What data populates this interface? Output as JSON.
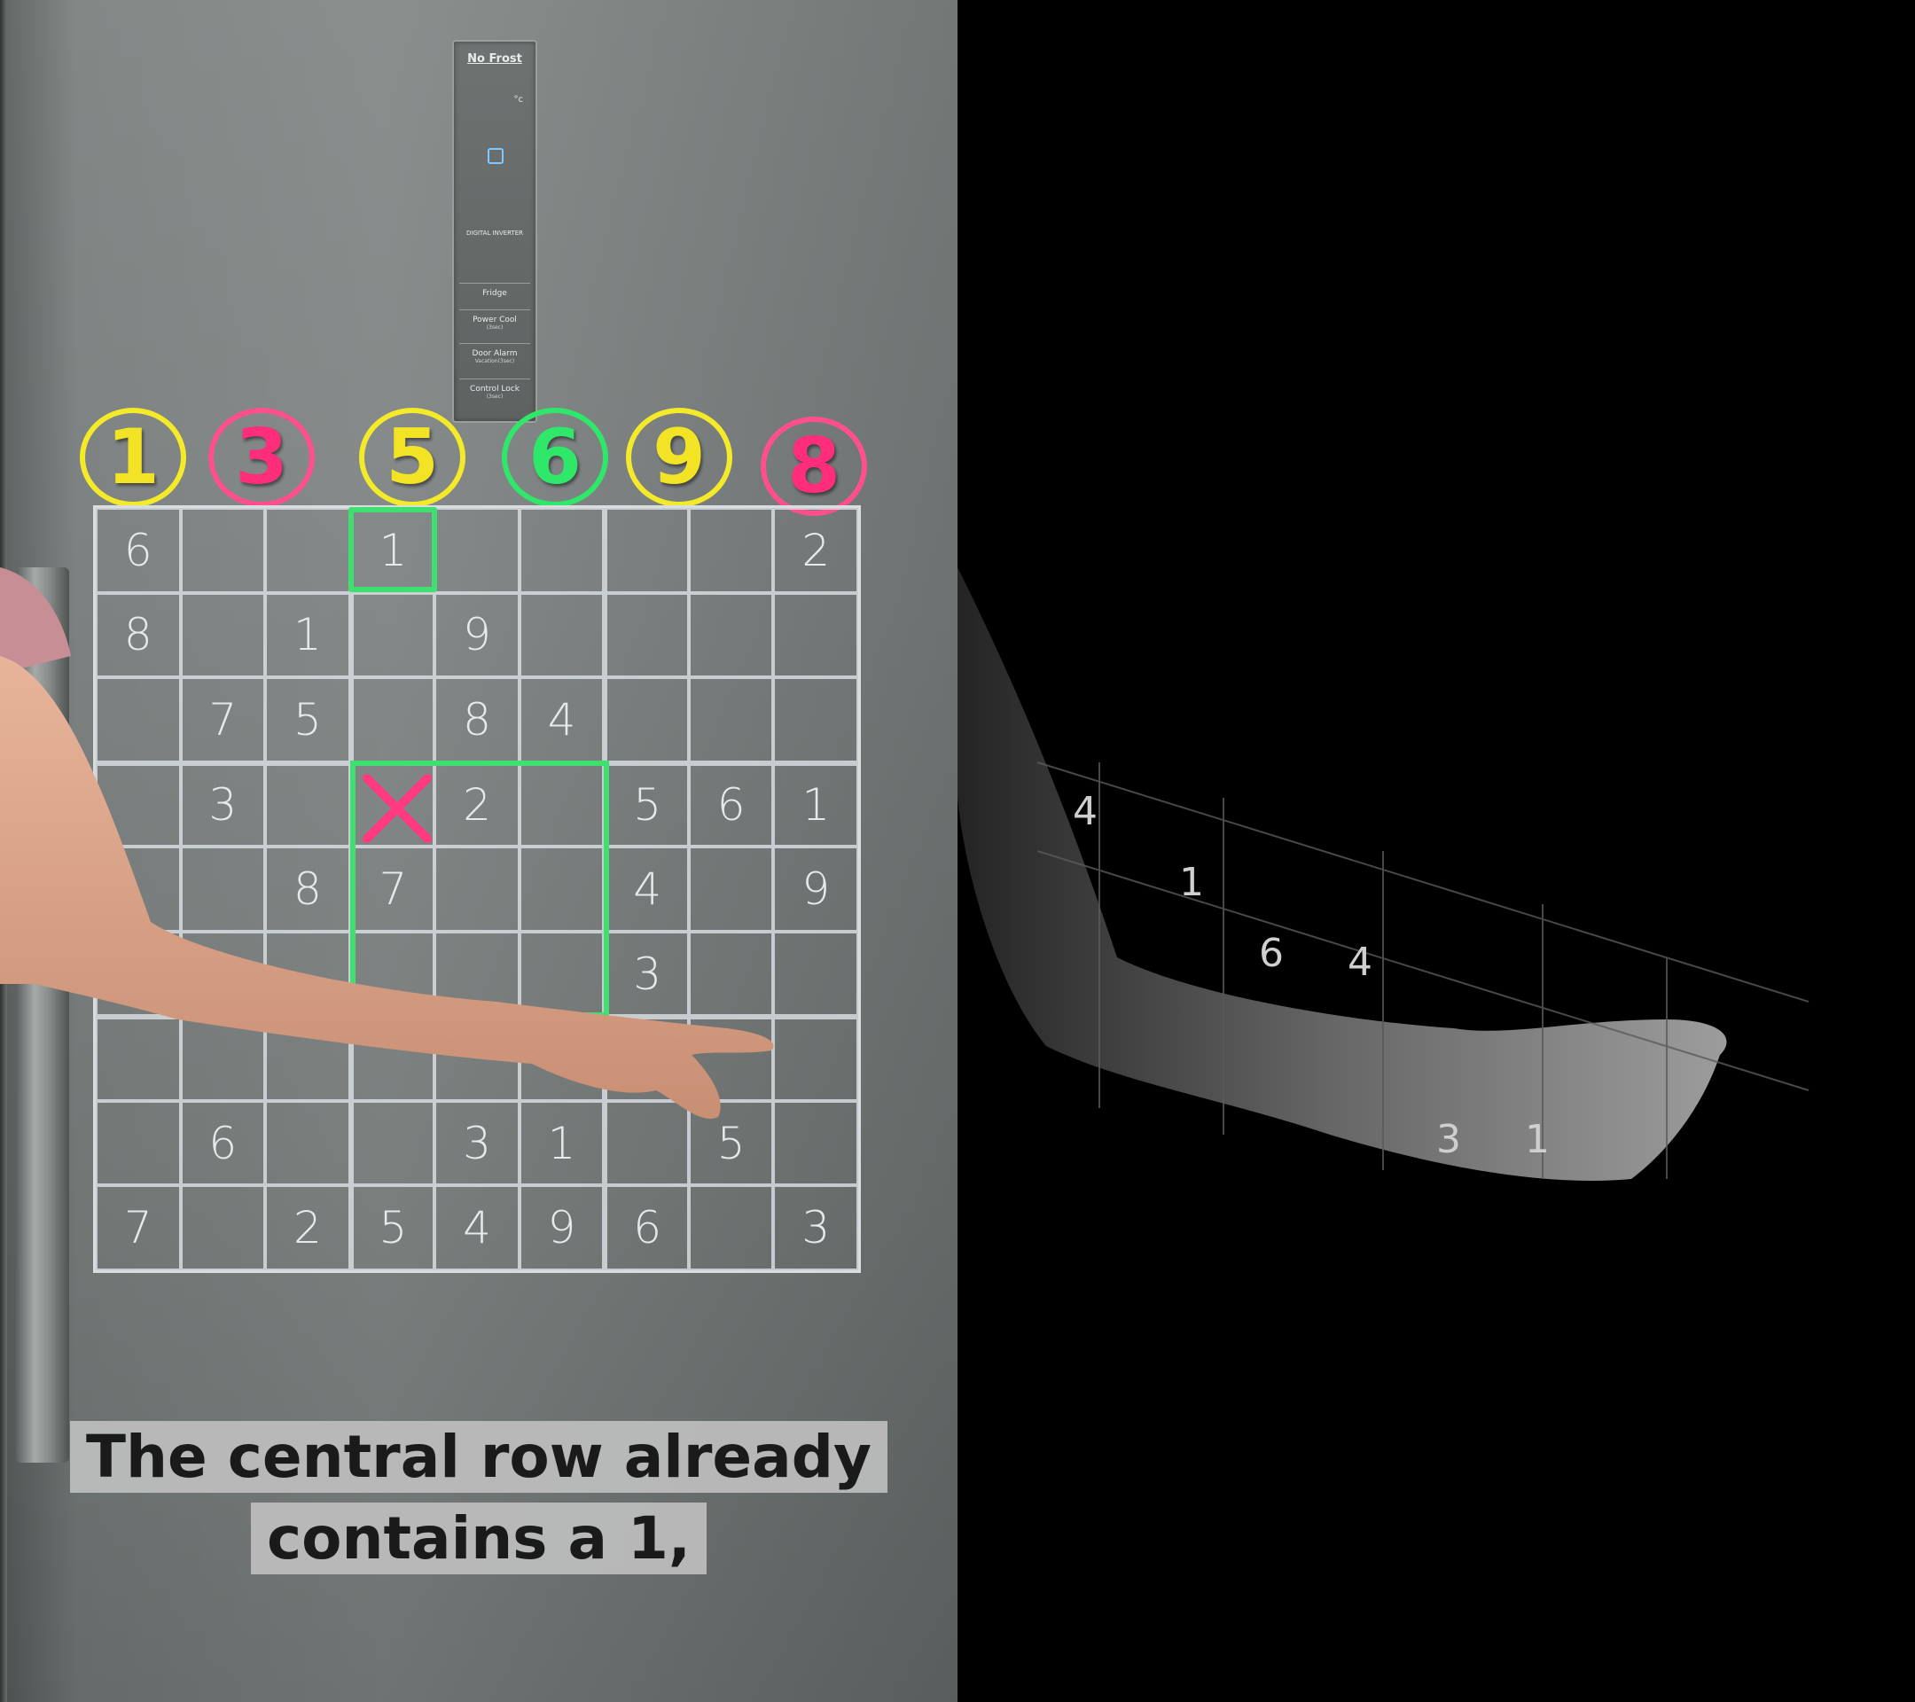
{
  "panel": {
    "brand": "No Frost",
    "degree": "°c",
    "digital": "DIGITAL INVERTER",
    "buttons": [
      {
        "label": "Fridge",
        "sub": ""
      },
      {
        "label": "Power Cool",
        "sub": "(3sec)"
      },
      {
        "label": "Door Alarm",
        "sub": "Vacation(3sec)"
      },
      {
        "label": "Control Lock",
        "sub": "(3sec)"
      }
    ]
  },
  "magnets": [
    {
      "digit": "1",
      "color": "#f2e425",
      "ring": "#f4ea2a"
    },
    {
      "digit": "3",
      "color": "#ff2d7a",
      "ring": "#ff4f8e"
    },
    {
      "digit": "5",
      "color": "#f2e425",
      "ring": "#f4ea2a"
    },
    {
      "digit": "6",
      "color": "#2fe86a",
      "ring": "#2fe86a"
    },
    {
      "digit": "9",
      "color": "#f2e425",
      "ring": "#f4ea2a"
    },
    {
      "digit": "8",
      "color": "#ff2d7a",
      "ring": "#ff4f8e"
    }
  ],
  "sudoku": [
    [
      "6",
      "",
      "",
      "1",
      "",
      "",
      "",
      "",
      "2"
    ],
    [
      "8",
      "",
      "1",
      "",
      "9",
      "",
      "",
      "",
      ""
    ],
    [
      "",
      "7",
      "5",
      "",
      "8",
      "4",
      "",
      "",
      ""
    ],
    [
      "",
      "3",
      "",
      "",
      "2",
      "",
      "5",
      "6",
      "1"
    ],
    [
      "",
      "",
      "8",
      "7",
      "",
      "",
      "4",
      "",
      "9"
    ],
    [
      "",
      "",
      "",
      "",
      "",
      "",
      "3",
      "",
      ""
    ],
    [
      "",
      "",
      "",
      "",
      "",
      "",
      "",
      "",
      ""
    ],
    [
      "",
      "6",
      "",
      "",
      "3",
      "1",
      "",
      "5",
      ""
    ],
    [
      "7",
      "",
      "2",
      "5",
      "4",
      "9",
      "6",
      "",
      "3"
    ]
  ],
  "highlight_color": "#40e070",
  "cross_color": "#ff3a80",
  "caption": {
    "line1": "The central row already",
    "line2": "contains a 1,"
  },
  "right_panel_digits": [
    "4",
    "1",
    "6",
    "4",
    "3",
    "1"
  ]
}
